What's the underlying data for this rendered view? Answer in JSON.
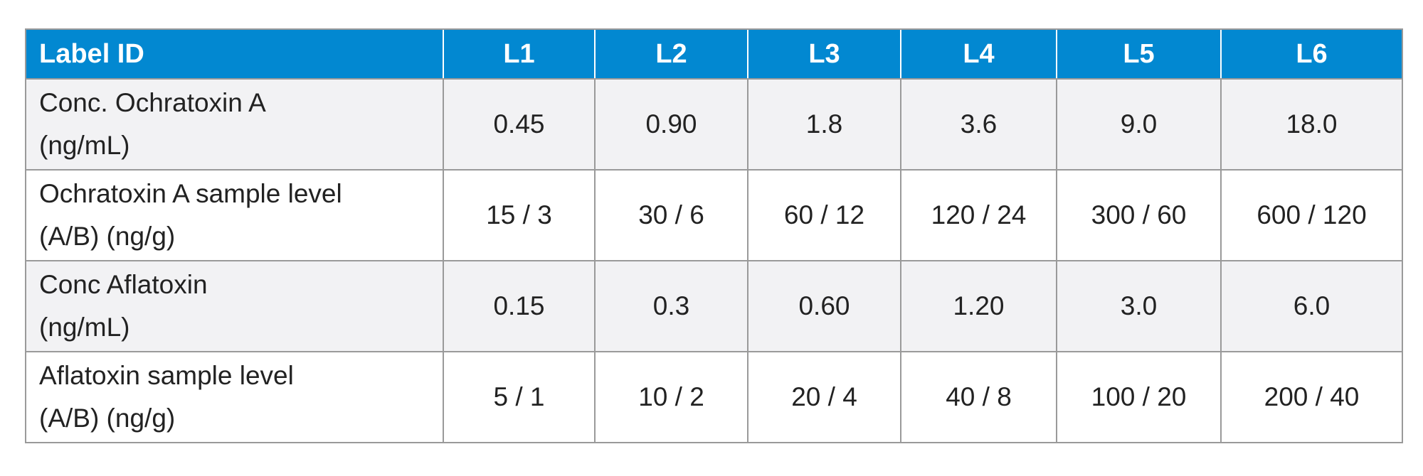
{
  "table": {
    "header": {
      "label": "Label ID",
      "levels": [
        "L1",
        "L2",
        "L3",
        "L4",
        "L5",
        "L6"
      ]
    },
    "rows": [
      {
        "label_line1": "Conc. Ochratoxin A",
        "label_line2": "(ng/mL)",
        "values": [
          "0.45",
          "0.90",
          "1.8",
          "3.6",
          "9.0",
          "18.0"
        ]
      },
      {
        "label_line1": "Ochratoxin A sample level",
        "label_line2": "(A/B) (ng/g)",
        "values": [
          "15 / 3",
          "30 / 6",
          "60 / 12",
          "120 / 24",
          "300 / 60",
          "600 / 120"
        ]
      },
      {
        "label_line1": "Conc Aflatoxin",
        "label_line2": "(ng/mL)",
        "values": [
          "0.15",
          "0.3",
          "0.60",
          "1.20",
          "3.0",
          "6.0"
        ]
      },
      {
        "label_line1": "Aflatoxin sample level",
        "label_line2": "(A/B) (ng/g)",
        "values": [
          "5 / 1",
          "10 / 2",
          "20 / 4",
          "40 / 8",
          "100 / 20",
          "200 / 40"
        ]
      }
    ],
    "colors": {
      "header_bg": "#0288d1",
      "header_text": "#ffffff",
      "shaded_row_bg": "#f2f2f4",
      "border": "#9a9a9a"
    }
  }
}
